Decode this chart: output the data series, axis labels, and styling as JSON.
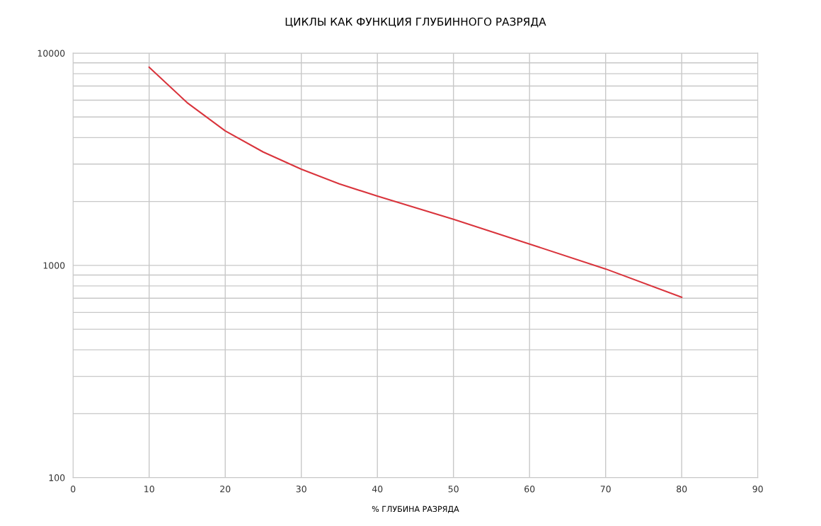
{
  "chart_data": {
    "type": "line",
    "title": "ЦИКЛЫ КАК ФУНКЦИЯ ГЛУБИННОГО РАЗРЯДА",
    "xlabel": "% ГЛУБИНА РАЗРЯДА",
    "x": [
      10,
      15,
      20,
      25,
      30,
      35,
      40,
      50,
      60,
      70,
      80
    ],
    "series": [
      {
        "color": "#d9343c",
        "values": [
          8580,
          5840,
          4300,
          3420,
          2840,
          2420,
          2120,
          1650,
          1260,
          962,
          708
        ]
      }
    ],
    "log": "y",
    "xlim": [
      0,
      90
    ],
    "xticks": [
      0,
      10,
      20,
      30,
      40,
      50,
      60,
      70,
      80,
      90
    ],
    "ylim": [
      100,
      10000
    ],
    "yticks": [
      100,
      1000,
      10000
    ],
    "grid": true,
    "marker": "none",
    "line_style": "solid"
  }
}
